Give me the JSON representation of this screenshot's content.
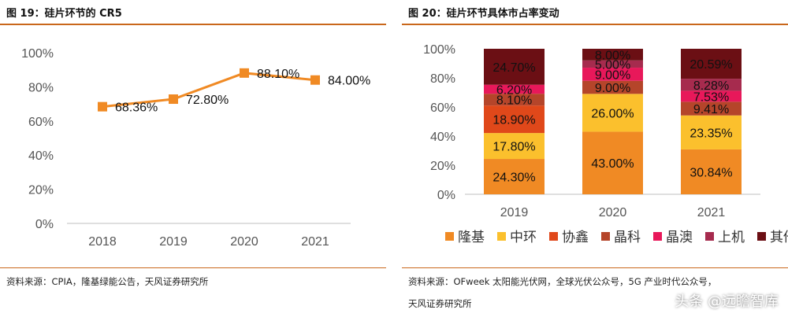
{
  "left": {
    "title": "图 19：硅片环节的 CR5",
    "source": "资料来源：CPIA，隆基绿能公告，天风证券研究所"
  },
  "right": {
    "title": "图 20：硅片环节具体市占率变动",
    "source_line1": "资料来源：OFweek 太阳能光伏网，全球光伏公众号，5G 产业时代公众号，",
    "source_line2": "天风证券研究所"
  },
  "watermark": "头条 @远瞻智库",
  "chart_data": [
    {
      "type": "line",
      "title": "",
      "categories": [
        "2018",
        "2019",
        "2020",
        "2021"
      ],
      "series": [
        {
          "name": "",
          "values": [
            68.36,
            72.8,
            88.1,
            84.0
          ],
          "labels": [
            "68.36%",
            "72.80%",
            "88.10%",
            "84.00%"
          ],
          "color": "#f08a24"
        }
      ],
      "ylim": [
        0,
        100
      ],
      "yticks": [
        "0%",
        "20%",
        "40%",
        "60%",
        "80%",
        "100%"
      ],
      "grid": false
    },
    {
      "type": "bar",
      "stacked": true,
      "title": "",
      "categories": [
        "2019",
        "2020",
        "2021"
      ],
      "series": [
        {
          "name": "隆基",
          "color": "#f08a24",
          "values": [
            24.3,
            43.0,
            30.84
          ],
          "labels": [
            "24.30%",
            "43.00%",
            "30.84%"
          ]
        },
        {
          "name": "中环",
          "color": "#fbc02d",
          "values": [
            17.8,
            26.0,
            23.35
          ],
          "labels": [
            "17.80%",
            "26.00%",
            "23.35%"
          ]
        },
        {
          "name": "协鑫",
          "color": "#e0481a",
          "values": [
            18.9,
            0,
            0
          ],
          "labels": [
            "18.90%",
            "",
            ""
          ]
        },
        {
          "name": "晶科",
          "color": "#b5452a",
          "values": [
            8.1,
            9.0,
            9.41
          ],
          "labels": [
            "8.10%",
            "9.00%",
            "9.41%"
          ]
        },
        {
          "name": "晶澳",
          "color": "#e8185a",
          "values": [
            6.2,
            9.0,
            7.53
          ],
          "labels": [
            "6.20%",
            "9.00%",
            "7.53%"
          ]
        },
        {
          "name": "上机",
          "color": "#a62b4e",
          "values": [
            0,
            5.0,
            8.28
          ],
          "labels": [
            "",
            "5.00%",
            "8.28%"
          ]
        },
        {
          "name": "其他",
          "color": "#6b0f14",
          "values": [
            24.7,
            8.0,
            20.59
          ],
          "labels": [
            "24.70%",
            "8.00%",
            "20.59%"
          ]
        }
      ],
      "ylim": [
        0,
        100
      ],
      "yticks": [
        "0%",
        "20%",
        "40%",
        "60%",
        "80%",
        "100%"
      ],
      "legend": "bottom",
      "grid": false
    }
  ]
}
